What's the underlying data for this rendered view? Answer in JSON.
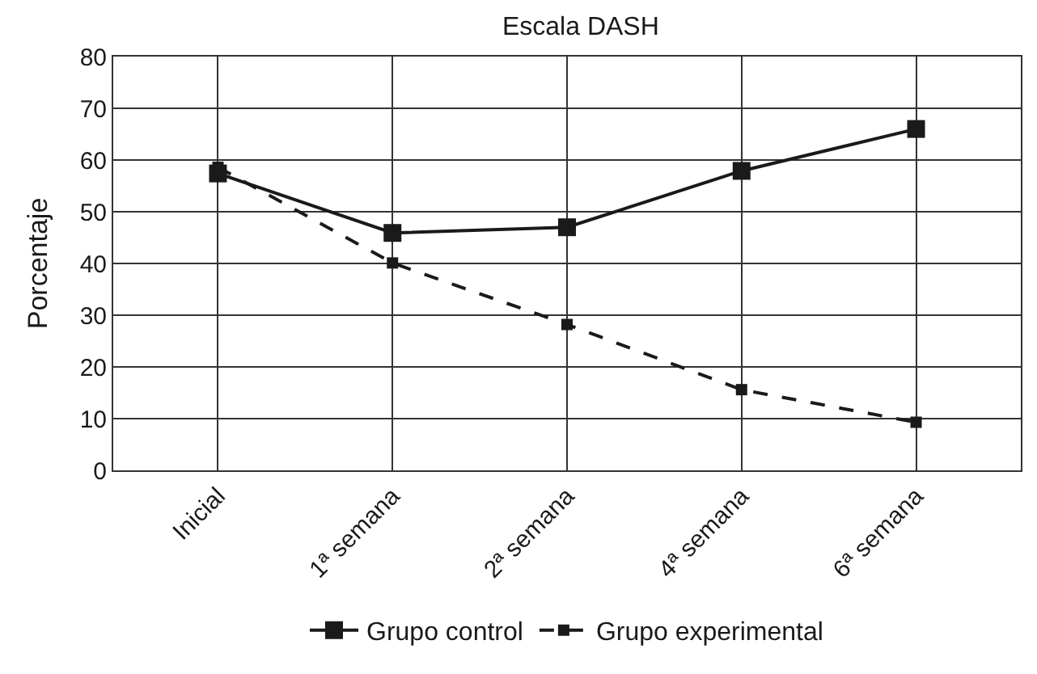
{
  "chart_data": {
    "type": "line",
    "title": "Escala DASH",
    "ylabel": "Porcentaje",
    "categories": [
      "Inicial",
      "1ª semana",
      "2ª semana",
      "4ª semana",
      "6ª semana"
    ],
    "series": [
      {
        "name": "Grupo control",
        "color": "#1a1a1a",
        "values": [
          57.4,
          45.9,
          47.0,
          57.9,
          66.0
        ],
        "line_style": "solid"
      },
      {
        "name": "Grupo experimental",
        "color": "#1a1a1a",
        "values": [
          58.6,
          40.1,
          28.2,
          15.6,
          9.3
        ],
        "line_style": "dashed"
      }
    ],
    "ylim": [
      0,
      80
    ],
    "yticks": [
      0,
      10,
      20,
      30,
      40,
      50,
      60,
      70,
      80
    ],
    "grid": true,
    "legend": "bottom",
    "marker": "square"
  }
}
